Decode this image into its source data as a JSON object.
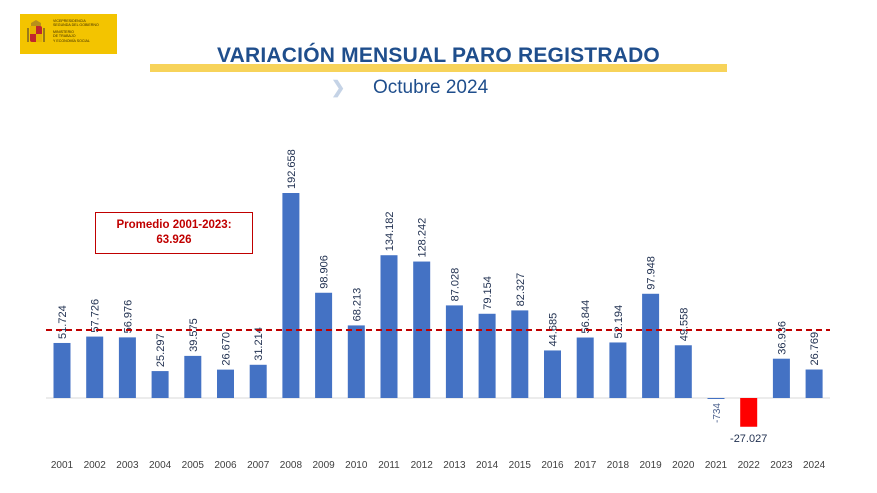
{
  "logo": {
    "org_lines": [
      "Vicepresidencia",
      "Segunda del Gobierno",
      "Ministerio",
      "de Trabajo",
      "y Economía Social"
    ]
  },
  "header": {
    "title": "VARIACIÓN MENSUAL PARO REGISTRADO",
    "subtitle": "Octubre 2024"
  },
  "average": {
    "label": "Promedio 2001-2023:",
    "value_label": "63.926",
    "value": 63926
  },
  "colors": {
    "bar": "#4472c4",
    "negative_highlight": "#ff0000",
    "average_line": "#c00000"
  },
  "chart_data": {
    "type": "bar",
    "title": "VARIACIÓN MENSUAL PARO REGISTRADO",
    "subtitle": "Octubre 2024",
    "categories": [
      "2001",
      "2002",
      "2003",
      "2004",
      "2005",
      "2006",
      "2007",
      "2008",
      "2009",
      "2010",
      "2011",
      "2012",
      "2013",
      "2014",
      "2015",
      "2016",
      "2017",
      "2018",
      "2019",
      "2020",
      "2021",
      "2022",
      "2023",
      "2024"
    ],
    "values": [
      51724,
      57726,
      56976,
      25297,
      39575,
      26670,
      31214,
      192658,
      98906,
      68213,
      134182,
      128242,
      87028,
      79154,
      82327,
      44685,
      56844,
      52194,
      97948,
      49558,
      -734,
      -27027,
      36936,
      26769
    ],
    "labels": [
      "51.724",
      "57.726",
      "56.976",
      "25.297",
      "39.575",
      "26.670",
      "31.214",
      "192.658",
      "98.906",
      "68.213",
      "134.182",
      "128.242",
      "87.028",
      "79.154",
      "82.327",
      "44.685",
      "56.844",
      "52.194",
      "97.948",
      "49.558",
      "-734",
      "-27.027",
      "36.936",
      "26.769"
    ],
    "highlight_category": "2022",
    "reference_line": {
      "value": 63926,
      "style": "dashed"
    },
    "grid": false,
    "legend": "none"
  }
}
